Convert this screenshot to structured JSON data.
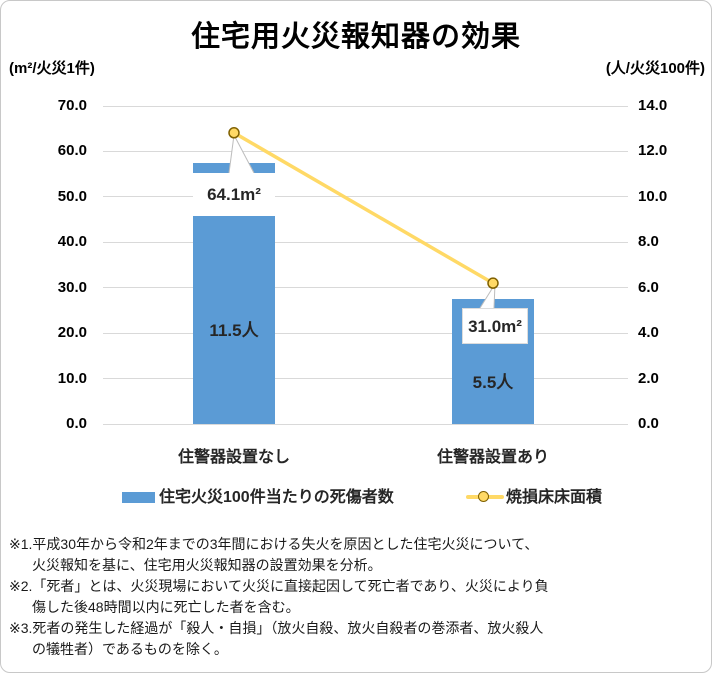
{
  "title": "住宅用火災報知器の効果",
  "axes": {
    "left_unit": "(m²/火災1件)",
    "right_unit": "(人/火災100件)",
    "left_ticks": [
      "70.0",
      "60.0",
      "50.0",
      "40.0",
      "30.0",
      "20.0",
      "10.0",
      "0.0"
    ],
    "right_ticks": [
      "14.0",
      "12.0",
      "10.0",
      "8.0",
      "6.0",
      "4.0",
      "2.0",
      "0.0"
    ]
  },
  "chart_data": {
    "type": "bar",
    "subtype": "combo-bar-line-dual-axis",
    "title": "住宅用火災報知器の効果",
    "categories": [
      "住警器設置なし",
      "住警器設置あり"
    ],
    "series": [
      {
        "name": "住宅火災100件当たりの死傷者数",
        "chart": "bar",
        "axis": "right",
        "values": [
          11.5,
          5.5
        ],
        "data_labels": [
          "11.5人",
          "5.5人"
        ],
        "color": "#5b9bd5"
      },
      {
        "name": "焼損床床面積",
        "chart": "line",
        "axis": "left",
        "values": [
          64.1,
          31.0
        ],
        "data_labels": [
          "64.1m²",
          "31.0m²"
        ],
        "color": "#ffd966",
        "marker_fill": "#ffd966",
        "marker_outline": "#7f6000"
      }
    ],
    "left_axis": {
      "label": "(m²/火災1件)",
      "range": [
        0,
        70
      ],
      "tick_step": 10
    },
    "right_axis": {
      "label": "(人/火災100件)",
      "range": [
        0,
        14
      ],
      "tick_step": 2
    },
    "grid": true,
    "legend_position": "bottom"
  },
  "legend": [
    {
      "label": "住宅火災100件当たりの死傷者数",
      "swatch": "bar"
    },
    {
      "label": "焼損床床面積",
      "swatch": "line-marker"
    }
  ],
  "footnotes": [
    {
      "text": "※1.平成30年から令和2年までの3年間における失火を原因とした住宅火災について、",
      "cont": false
    },
    {
      "text": "火災報知を基に、住宅用火災報知器の設置効果を分析。",
      "cont": true
    },
    {
      "text": "※2.「死者」とは、火災現場において火災に直接起因して死亡者であり、火災により負",
      "cont": false
    },
    {
      "text": "傷した後48時間以内に死亡した者を含む。",
      "cont": true
    },
    {
      "text": "※3.死者の発生した経過が「殺人・自損」（放火自殺、放火自殺者の巻添者、放火殺人",
      "cont": false
    },
    {
      "text": "の犠牲者）であるものを除く。",
      "cont": true
    }
  ],
  "colors": {
    "bar": "#5b9bd5",
    "line": "#ffd966",
    "marker_fill": "#ffd966",
    "marker_outline": "#7f6000",
    "grid": "#d9d9d9",
    "leader": "#bdbdbd",
    "frame_border": "#c8c8c8"
  }
}
